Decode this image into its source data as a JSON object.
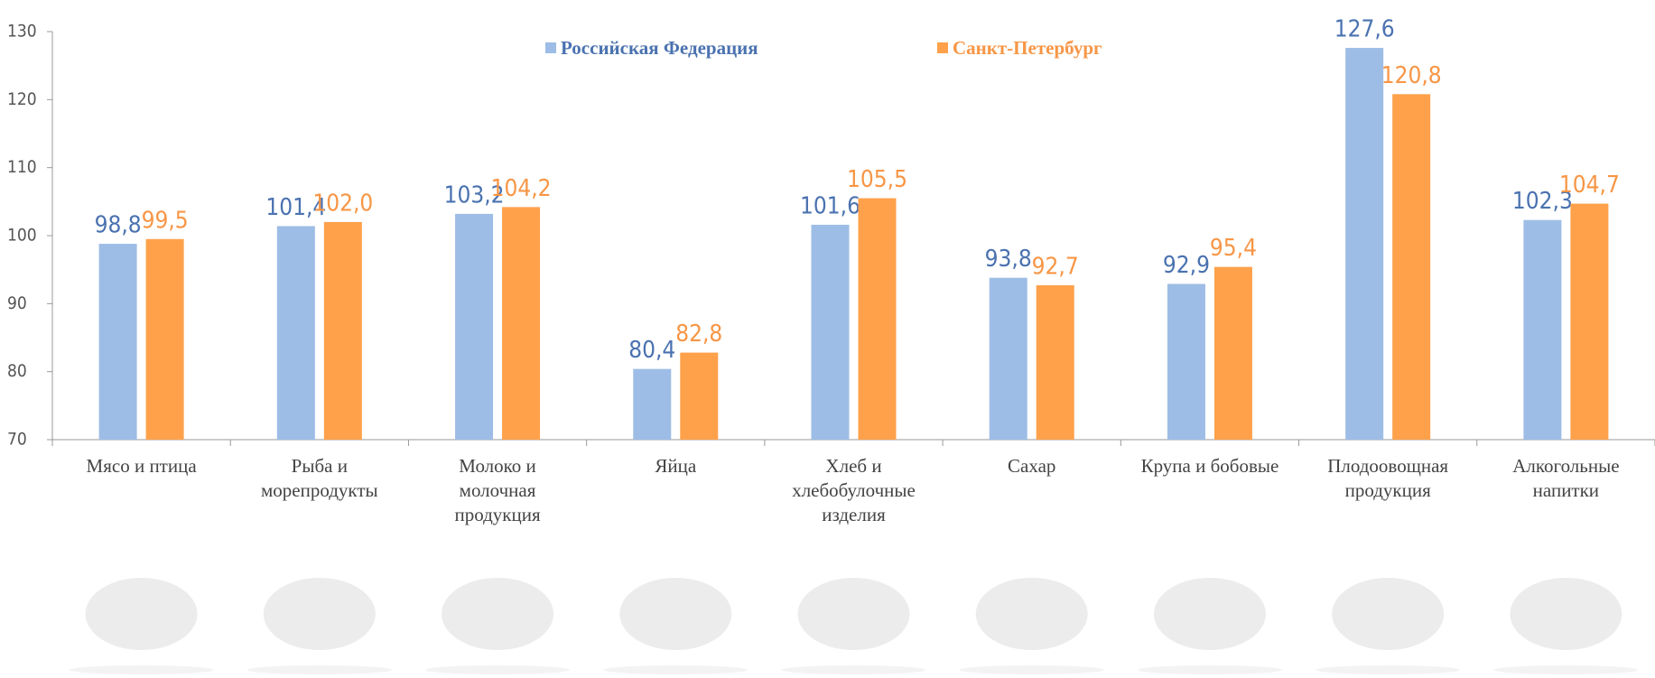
{
  "chart_data": {
    "type": "bar",
    "categories": [
      "Мясо и птица",
      "Рыба и морепродукты",
      "Молоко и молочная продукция",
      "Яйца",
      "Хлеб и хлебобулочные изделия",
      "Сахар",
      "Крупа и бобовые",
      "Плодоовощная продукция",
      "Алкогольные напитки"
    ],
    "series": [
      {
        "name": "Российская Федерация",
        "color": "#9dbde6",
        "label_color": "#4a72b0",
        "values": [
          98.8,
          101.4,
          103.2,
          80.4,
          101.6,
          93.8,
          92.9,
          127.6,
          102.3
        ],
        "value_labels": [
          "98,8",
          "101,4",
          "103,2",
          "80,4",
          "101,6",
          "93,8",
          "92,9",
          "127,6",
          "102,3"
        ]
      },
      {
        "name": "Санкт-Петербург",
        "color": "#ffa14b",
        "label_color": "#f79646",
        "values": [
          99.5,
          102.0,
          104.2,
          82.8,
          105.5,
          92.7,
          95.4,
          120.8,
          104.7
        ],
        "value_labels": [
          "99,5",
          "102,0",
          "104,2",
          "82,8",
          "105,5",
          "92,7",
          "95,4",
          "120,8",
          "104,7"
        ]
      }
    ],
    "ylim": [
      70,
      130
    ],
    "yticks": [
      70,
      80,
      90,
      100,
      110,
      120,
      130
    ],
    "grid": false,
    "legend": "top"
  }
}
